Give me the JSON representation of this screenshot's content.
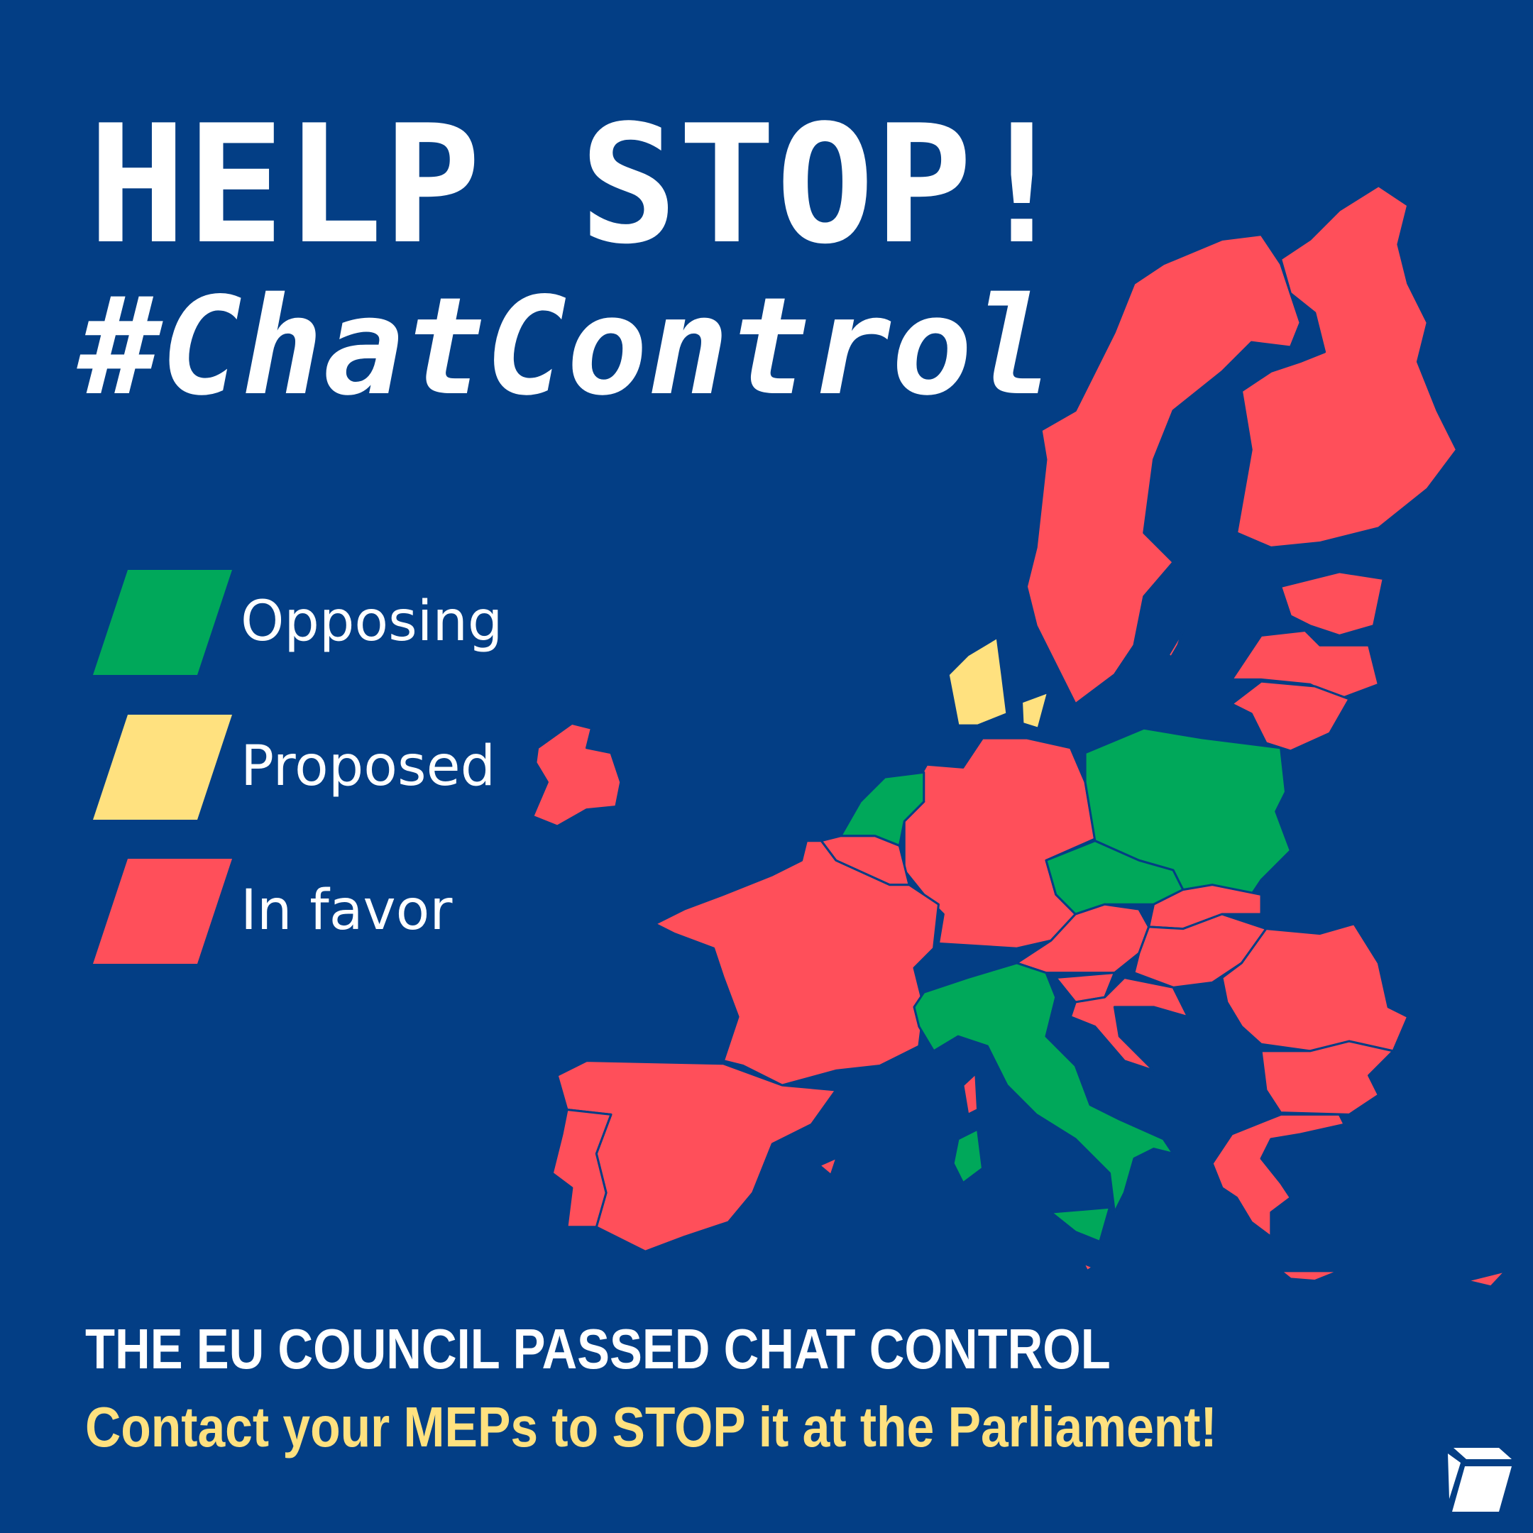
{
  "header": {
    "title": "HELP STOP!",
    "hashtag": "#ChatControl"
  },
  "legend": [
    {
      "label": "Opposing",
      "status": "opposing"
    },
    {
      "label": "Proposed",
      "status": "proposed"
    },
    {
      "label": "In favor",
      "status": "in_favor"
    }
  ],
  "colors": {
    "background": "#033e85",
    "opposing": "#00a85a",
    "proposed": "#ffe17f",
    "in_favor": "#ff4f5a",
    "accent_text": "#ffe17f"
  },
  "map": {
    "regions": [
      {
        "id": "ireland",
        "status": "in_favor"
      },
      {
        "id": "sweden",
        "status": "in_favor"
      },
      {
        "id": "finland",
        "status": "in_favor"
      },
      {
        "id": "estonia",
        "status": "in_favor"
      },
      {
        "id": "latvia",
        "status": "in_favor"
      },
      {
        "id": "lithuania",
        "status": "in_favor"
      },
      {
        "id": "denmark",
        "status": "proposed"
      },
      {
        "id": "germany",
        "status": "in_favor"
      },
      {
        "id": "netherlands",
        "status": "opposing"
      },
      {
        "id": "belgium",
        "status": "in_favor"
      },
      {
        "id": "france",
        "status": "in_favor"
      },
      {
        "id": "spain",
        "status": "in_favor"
      },
      {
        "id": "portugal",
        "status": "in_favor"
      },
      {
        "id": "poland",
        "status": "opposing"
      },
      {
        "id": "czechia",
        "status": "opposing"
      },
      {
        "id": "slovakia",
        "status": "in_favor"
      },
      {
        "id": "austria",
        "status": "in_favor"
      },
      {
        "id": "hungary",
        "status": "in_favor"
      },
      {
        "id": "slovenia",
        "status": "in_favor"
      },
      {
        "id": "croatia",
        "status": "in_favor"
      },
      {
        "id": "italy",
        "status": "opposing"
      },
      {
        "id": "romania",
        "status": "in_favor"
      },
      {
        "id": "bulgaria",
        "status": "in_favor"
      },
      {
        "id": "greece",
        "status": "in_favor"
      },
      {
        "id": "cyprus",
        "status": "in_favor"
      },
      {
        "id": "malta",
        "status": "in_favor"
      }
    ]
  },
  "footer": {
    "headline": "THE EU COUNCIL PASSED CHAT CONTROL",
    "call_to_action": "Contact your MEPs to STOP it at the Parliament!"
  },
  "logo": {
    "icon": "box-icon"
  }
}
